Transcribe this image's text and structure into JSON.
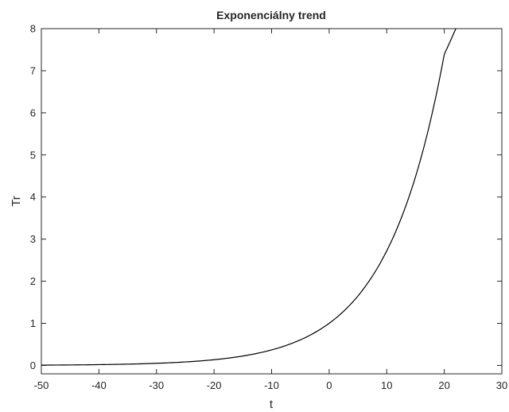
{
  "chart_data": {
    "type": "line",
    "title": "Exponenciálny trend",
    "xlabel": "t",
    "ylabel": "Tr",
    "xlim": [
      -50,
      30
    ],
    "ylim": [
      -0.2,
      8
    ],
    "xticks": [
      -50,
      -40,
      -30,
      -20,
      -10,
      0,
      10,
      20,
      30
    ],
    "yticks": [
      0,
      1,
      2,
      3,
      4,
      5,
      6,
      7,
      8
    ],
    "grid": false,
    "legend": "none",
    "series": [
      {
        "x": [
          -50,
          -45,
          -40,
          -35,
          -30,
          -25,
          -20,
          -15,
          -10,
          -5,
          0,
          5,
          10,
          15,
          20,
          22
        ],
        "y": [
          0.0067,
          0.011,
          0.018,
          0.03,
          0.05,
          0.082,
          0.135,
          0.223,
          0.368,
          0.607,
          1.0,
          1.65,
          2.72,
          4.48,
          7.39,
          8.0
        ],
        "color": "#000000"
      }
    ]
  }
}
